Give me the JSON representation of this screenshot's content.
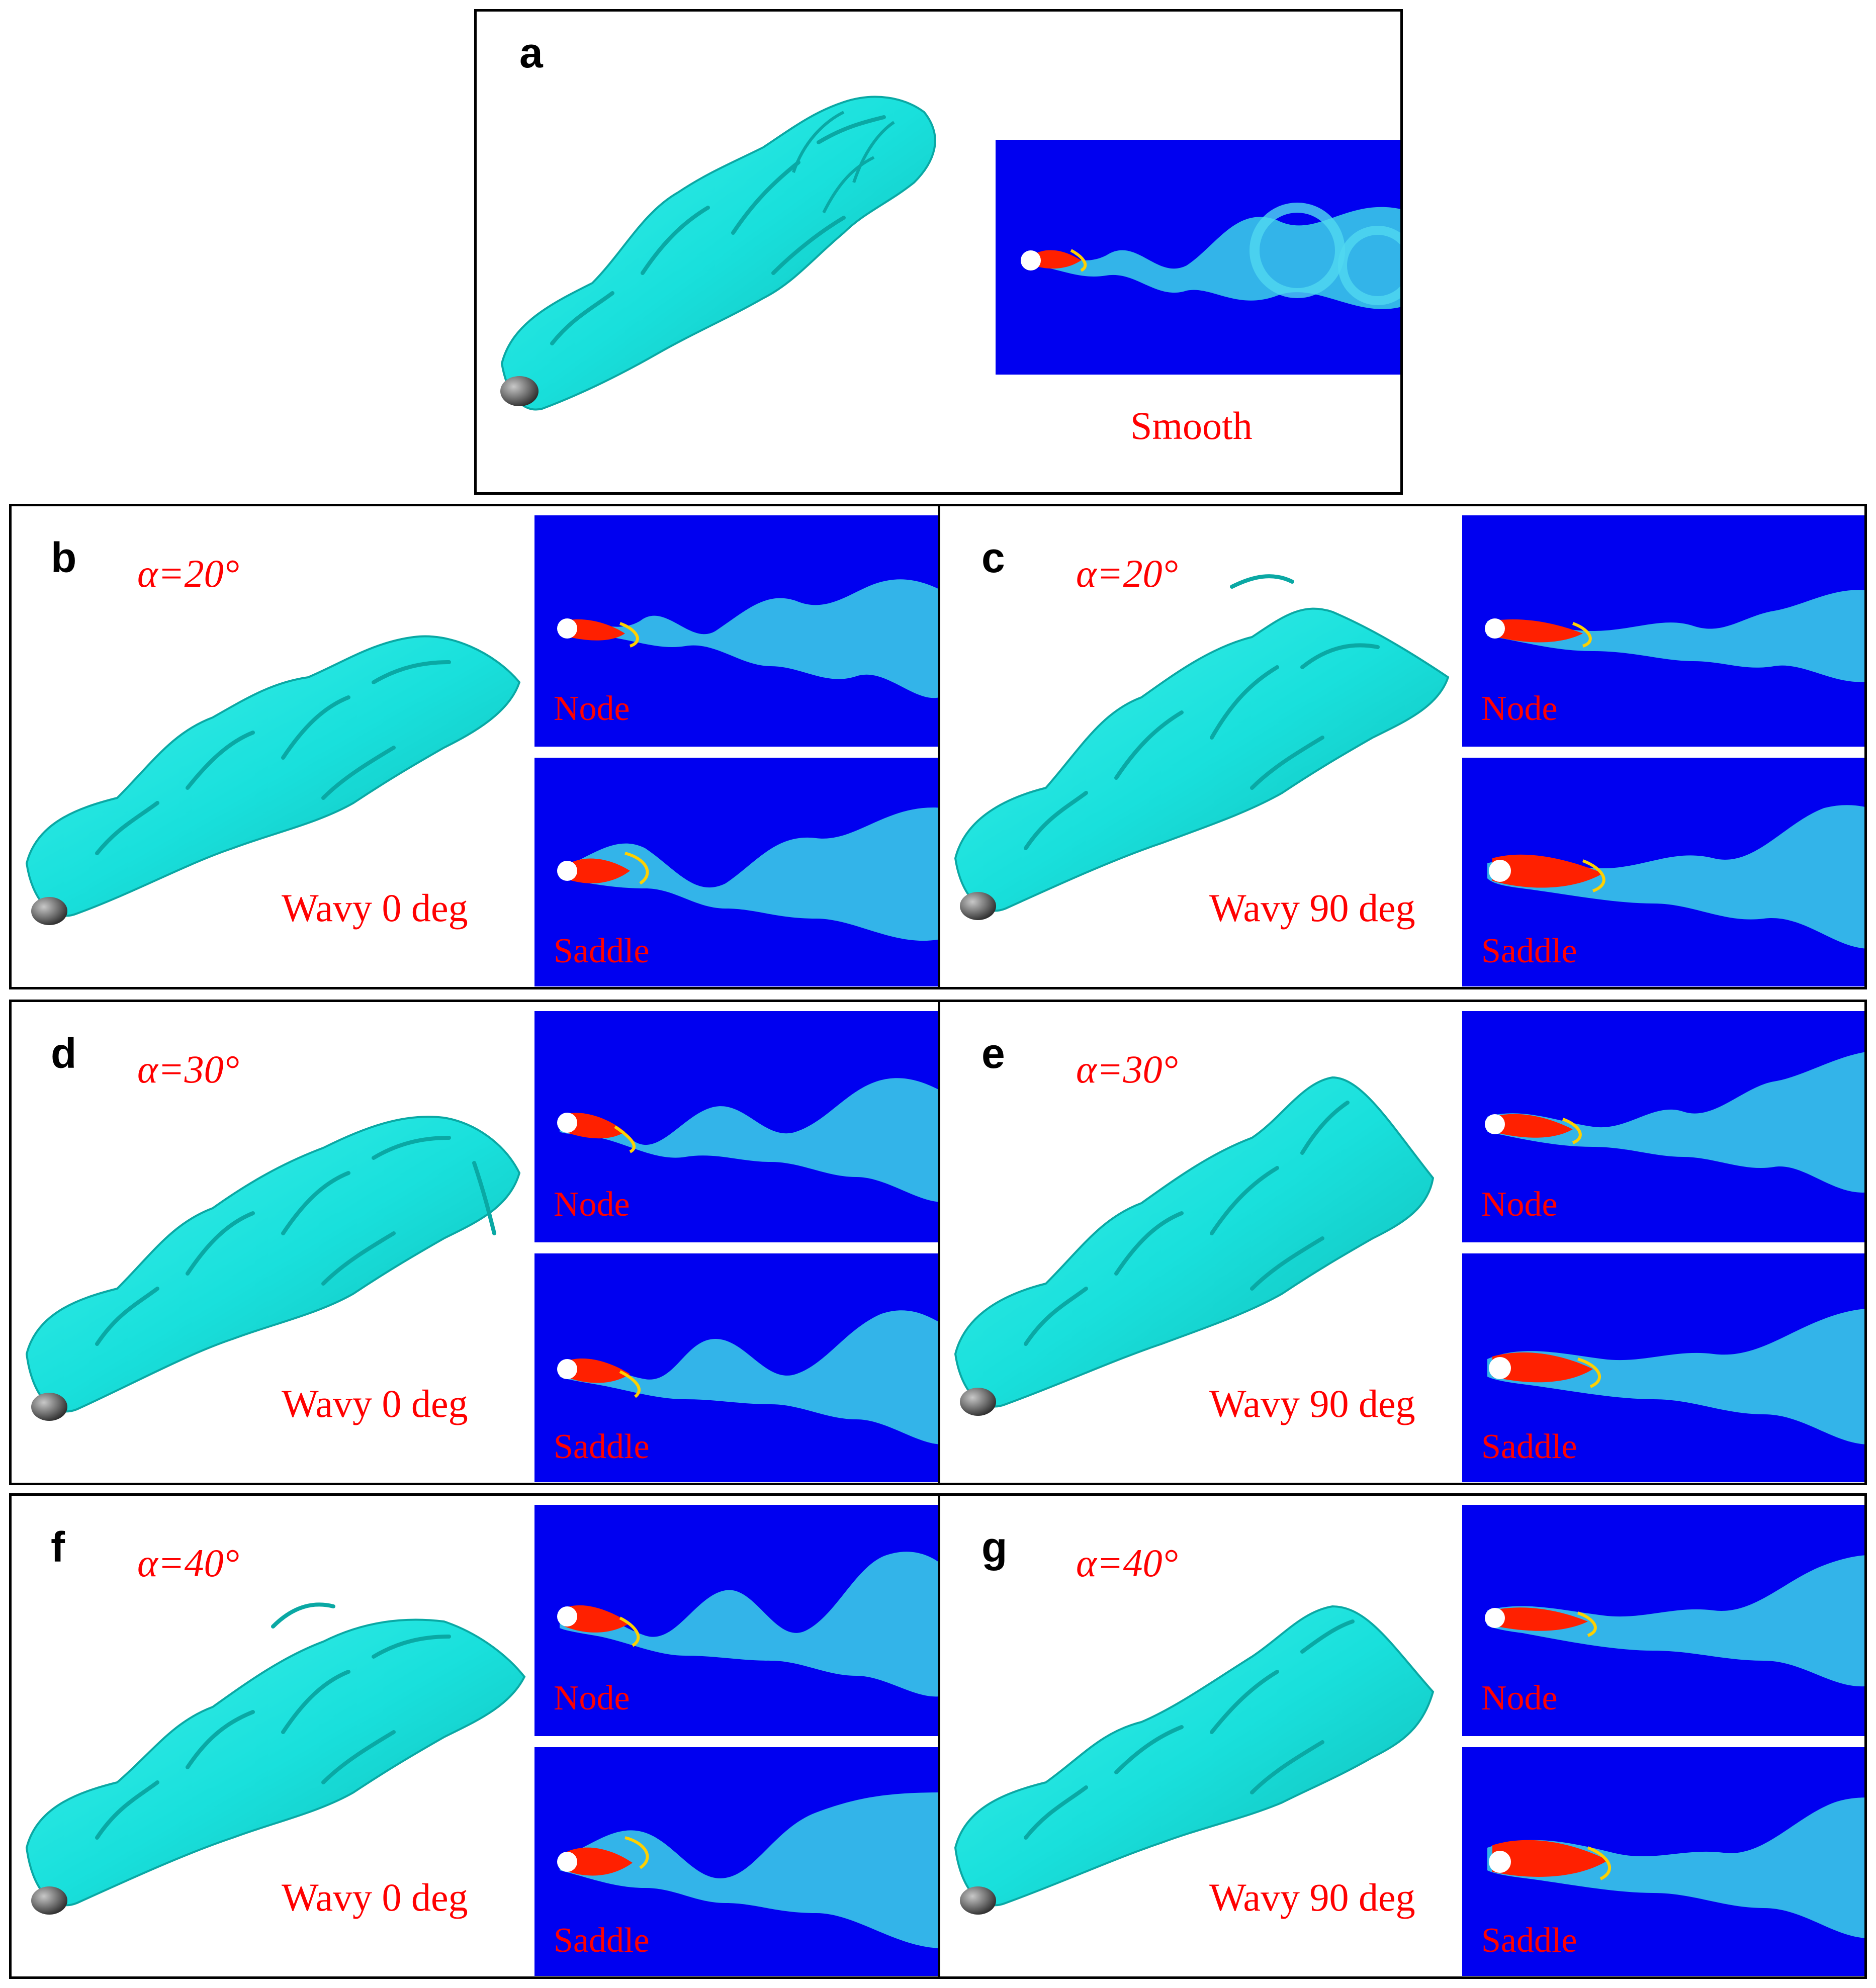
{
  "colors": {
    "vortex": "#19e0dc",
    "vortex_dark": "#0aa8a4",
    "field_background": "#0000f0",
    "label_red": "#ff0000",
    "cylinder": "#6c6c6c"
  },
  "panels": [
    {
      "id": "a",
      "letter": "a",
      "caption": "Smooth",
      "alpha": "",
      "slices": []
    },
    {
      "id": "b",
      "letter": "b",
      "caption": "Wavy 0 deg",
      "alpha": "α=20°",
      "slices": [
        "Node",
        "Saddle"
      ]
    },
    {
      "id": "c",
      "letter": "c",
      "caption": "Wavy 90 deg",
      "alpha": "α=20°",
      "slices": [
        "Node",
        "Saddle"
      ]
    },
    {
      "id": "d",
      "letter": "d",
      "caption": "Wavy 0 deg",
      "alpha": "α=30°",
      "slices": [
        "Node",
        "Saddle"
      ]
    },
    {
      "id": "e",
      "letter": "e",
      "caption": "Wavy 90 deg",
      "alpha": "α=30°",
      "slices": [
        "Node",
        "Saddle"
      ]
    },
    {
      "id": "f",
      "letter": "f",
      "caption": "Wavy 0 deg",
      "alpha": "α=40°",
      "slices": [
        "Node",
        "Saddle"
      ]
    },
    {
      "id": "g",
      "letter": "g",
      "caption": "Wavy 90 deg",
      "alpha": "α=40°",
      "slices": [
        "Node",
        "Saddle"
      ]
    }
  ]
}
